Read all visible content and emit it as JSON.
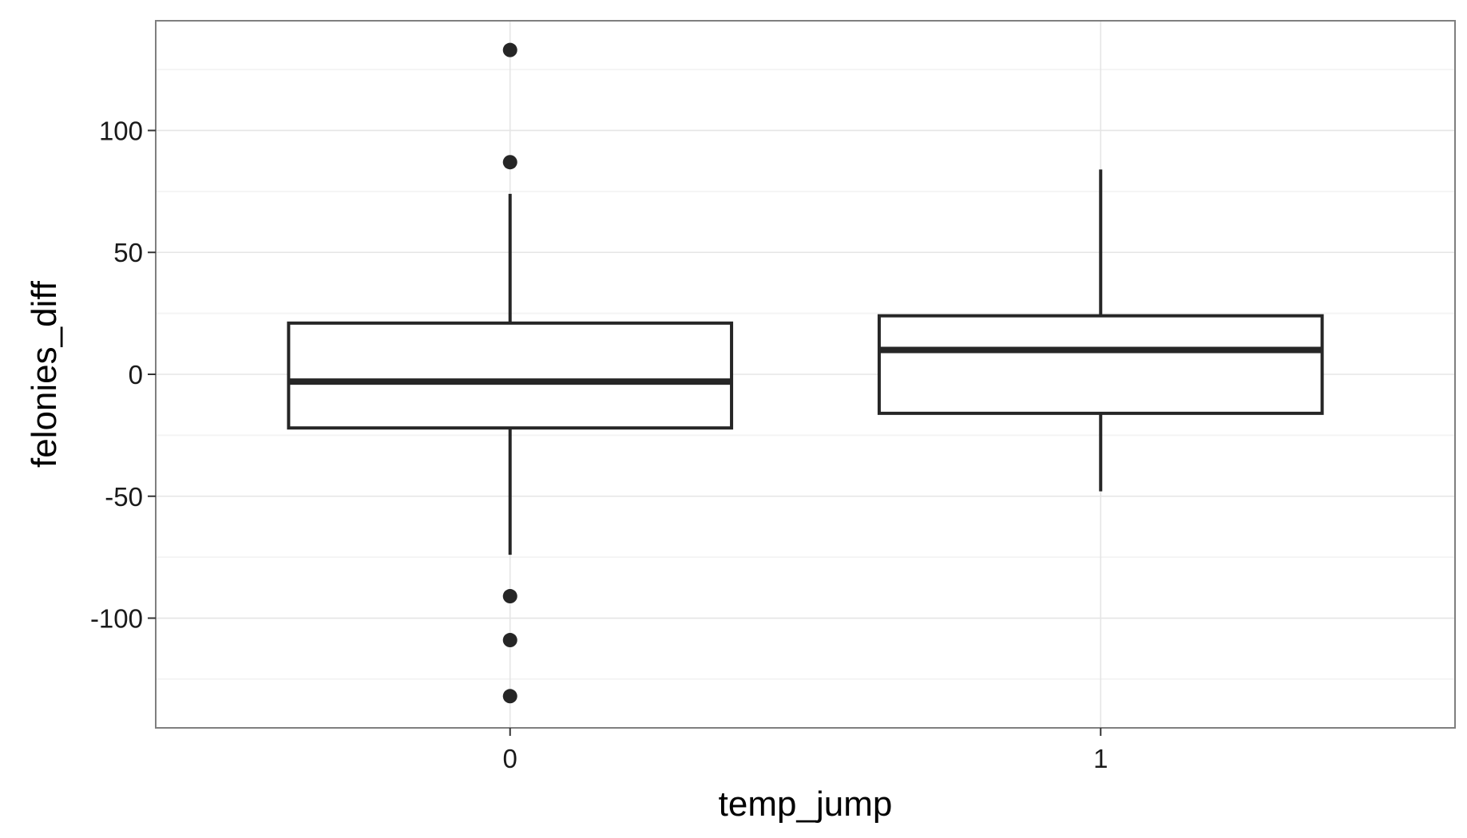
{
  "chart_data": {
    "type": "box",
    "xlabel": "temp_jump",
    "ylabel": "felonies_diff",
    "categories": [
      "0",
      "1"
    ],
    "ylim": [
      -145,
      145
    ],
    "yticks": [
      100,
      50,
      0,
      -50,
      -100
    ],
    "ytick_labels": [
      "100",
      "50",
      "0",
      "-50",
      "-100"
    ],
    "grid": true,
    "boxes": [
      {
        "category": "0",
        "q1": -22,
        "median": -3,
        "q3": 21,
        "whisker_low": -74,
        "whisker_high": 74,
        "outliers": [
          133,
          87,
          -91,
          -109,
          -132
        ]
      },
      {
        "category": "1",
        "q1": -16,
        "median": 10,
        "q3": 24,
        "whisker_low": -48,
        "whisker_high": 84,
        "outliers": []
      }
    ],
    "colors": {
      "box": "#262626",
      "panel_border": "#7f7f7f",
      "major_grid": "#e5e5e5",
      "minor_grid": "#f4f4f4"
    }
  }
}
